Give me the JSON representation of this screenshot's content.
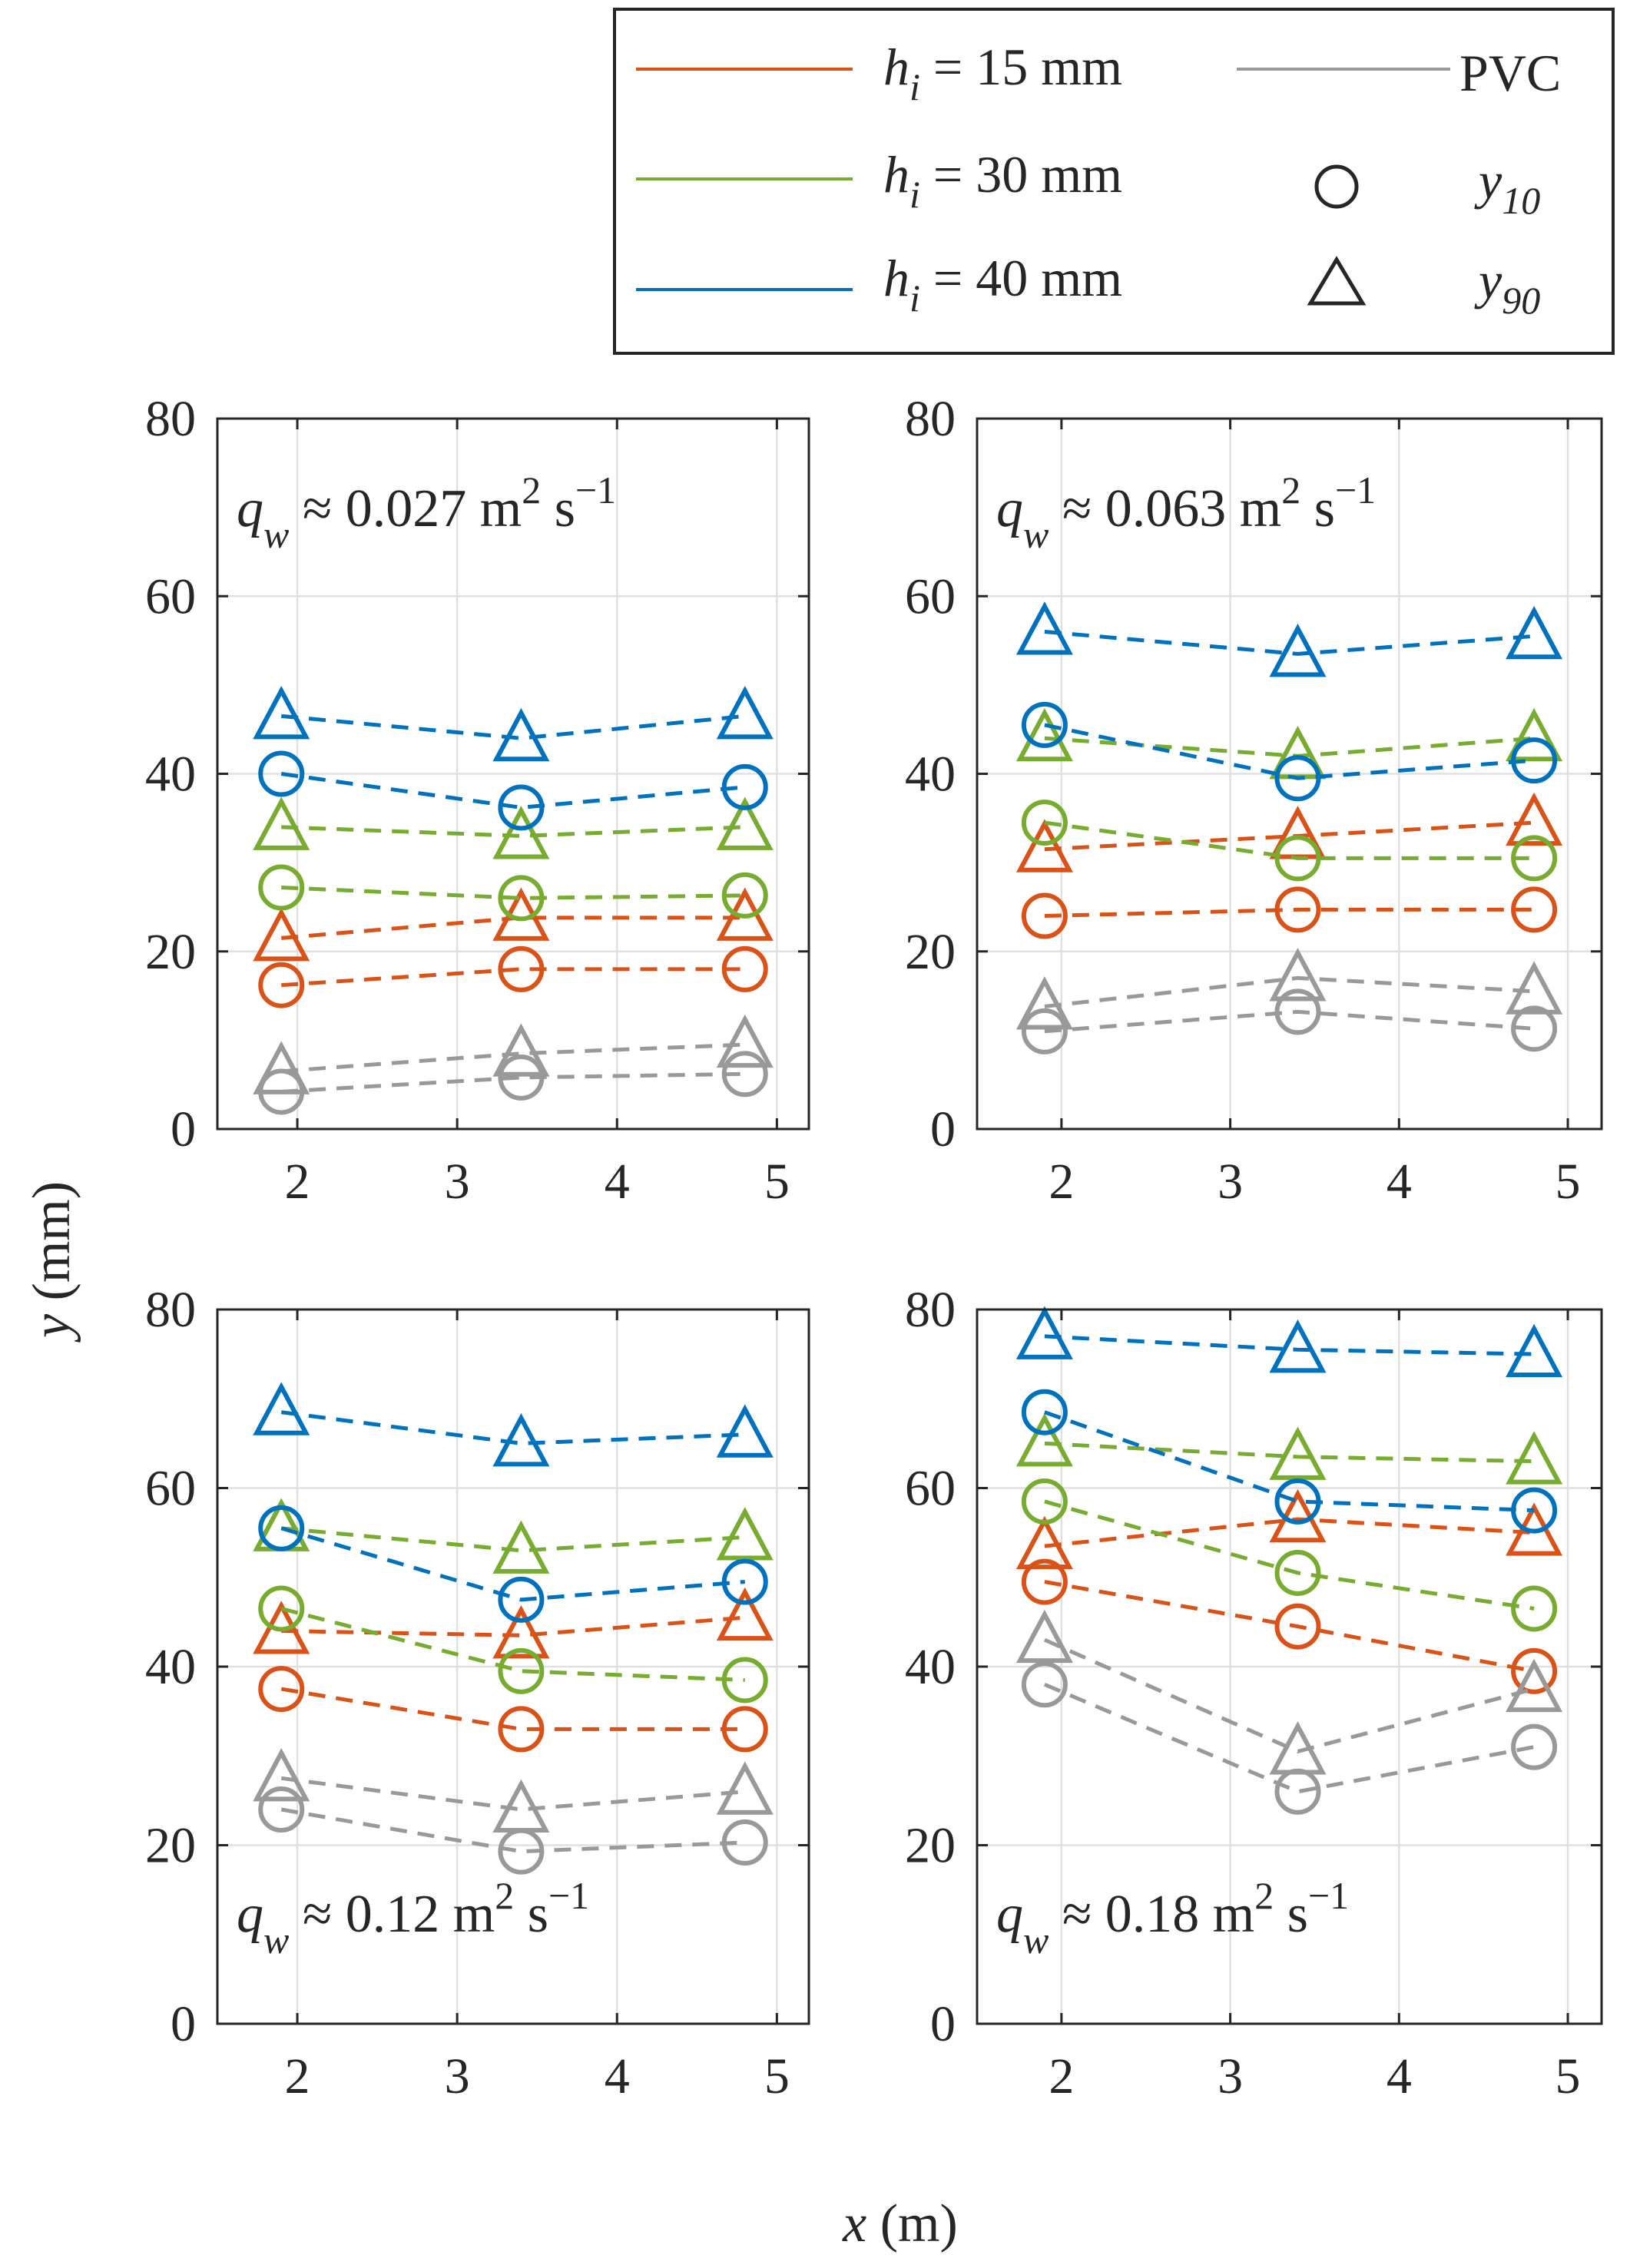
{
  "legend": {
    "items": [
      {
        "label": "h",
        "sub": "i",
        "suffix": " = 15 mm",
        "color": "#d95319",
        "kind": "line"
      },
      {
        "label": "h",
        "sub": "i",
        "suffix": " = 30 mm",
        "color": "#77ac30",
        "kind": "line"
      },
      {
        "label": "h",
        "sub": "i",
        "suffix": " = 40 mm",
        "color": "#0072bd",
        "kind": "line"
      },
      {
        "label": "PVC",
        "sub": "",
        "suffix": "",
        "color": "#999999",
        "kind": "line"
      },
      {
        "label": "y",
        "sub": "10",
        "suffix": "",
        "color": "#262626",
        "kind": "circle"
      },
      {
        "label": "y",
        "sub": "90",
        "suffix": "",
        "color": "#262626",
        "kind": "triangle"
      }
    ]
  },
  "axes": {
    "xlabel": "x",
    "xlabel_unit": " (m)",
    "ylabel": "y",
    "ylabel_unit": " (mm)"
  },
  "chart_data": [
    {
      "type": "line",
      "title": "q_w ≈ 0.027 m² s⁻¹",
      "annotation": {
        "q": "q",
        "sub": "w",
        "mid": " ≈ 0.027 m",
        "sup1": "2",
        "s": " s",
        "sup2": "−1"
      },
      "annotation_pos": "top-left",
      "xlim": [
        1.5,
        5.2
      ],
      "ylim": [
        0,
        80
      ],
      "xticks": [
        2,
        3,
        4,
        5
      ],
      "yticks": [
        0,
        20,
        40,
        60,
        80
      ],
      "x": [
        1.9,
        3.4,
        4.8
      ],
      "series": [
        {
          "name": "h_i = 15 mm y10",
          "color": "#d95319",
          "marker": "circle",
          "values": [
            16.2,
            18.0,
            18.0
          ]
        },
        {
          "name": "h_i = 15 mm y90",
          "color": "#d95319",
          "marker": "triangle",
          "values": [
            21.5,
            23.8,
            23.8
          ]
        },
        {
          "name": "h_i = 30 mm y10",
          "color": "#77ac30",
          "marker": "circle",
          "values": [
            27.2,
            26.0,
            26.3
          ]
        },
        {
          "name": "h_i = 30 mm y90",
          "color": "#77ac30",
          "marker": "triangle",
          "values": [
            34.0,
            33.0,
            34.0
          ]
        },
        {
          "name": "h_i = 40 mm y10",
          "color": "#0072bd",
          "marker": "circle",
          "values": [
            40.0,
            36.2,
            38.5
          ]
        },
        {
          "name": "h_i = 40 mm y90",
          "color": "#0072bd",
          "marker": "triangle",
          "values": [
            46.5,
            44.0,
            46.5
          ]
        },
        {
          "name": "PVC y10",
          "color": "#999999",
          "marker": "circle",
          "values": [
            4.2,
            5.8,
            6.2
          ]
        },
        {
          "name": "PVC y90",
          "color": "#999999",
          "marker": "triangle",
          "values": [
            6.5,
            8.5,
            9.5
          ]
        }
      ]
    },
    {
      "type": "line",
      "title": "q_w ≈ 0.063 m² s⁻¹",
      "annotation": {
        "q": "q",
        "sub": "w",
        "mid": " ≈ 0.063 m",
        "sup1": "2",
        "s": " s",
        "sup2": "−1"
      },
      "annotation_pos": "top-left",
      "xlim": [
        1.5,
        5.2
      ],
      "ylim": [
        0,
        80
      ],
      "xticks": [
        2,
        3,
        4,
        5
      ],
      "yticks": [
        0,
        20,
        40,
        60,
        80
      ],
      "x": [
        1.9,
        3.4,
        4.8
      ],
      "series": [
        {
          "name": "h_i = 15 mm y10",
          "color": "#d95319",
          "marker": "circle",
          "values": [
            24.0,
            24.7,
            24.7
          ]
        },
        {
          "name": "h_i = 15 mm y90",
          "color": "#d95319",
          "marker": "triangle",
          "values": [
            31.5,
            33.0,
            34.5
          ]
        },
        {
          "name": "h_i = 30 mm y10",
          "color": "#77ac30",
          "marker": "circle",
          "values": [
            34.5,
            30.5,
            30.5
          ]
        },
        {
          "name": "h_i = 30 mm y90",
          "color": "#77ac30",
          "marker": "triangle",
          "values": [
            44.0,
            42.0,
            44.0
          ]
        },
        {
          "name": "h_i = 40 mm y10",
          "color": "#0072bd",
          "marker": "circle",
          "values": [
            45.5,
            39.5,
            41.5
          ]
        },
        {
          "name": "h_i = 40 mm y90",
          "color": "#0072bd",
          "marker": "triangle",
          "values": [
            56.0,
            53.5,
            55.5
          ]
        },
        {
          "name": "PVC y10",
          "color": "#999999",
          "marker": "circle",
          "values": [
            11.0,
            13.2,
            11.3
          ]
        },
        {
          "name": "PVC y90",
          "color": "#999999",
          "marker": "triangle",
          "values": [
            13.8,
            17.0,
            15.5
          ]
        }
      ]
    },
    {
      "type": "line",
      "title": "q_w ≈ 0.12 m² s⁻¹",
      "annotation": {
        "q": "q",
        "sub": "w",
        "mid": " ≈ 0.12 m",
        "sup1": "2",
        "s": " s",
        "sup2": "−1"
      },
      "annotation_pos": "bottom-left",
      "xlim": [
        1.5,
        5.2
      ],
      "ylim": [
        0,
        80
      ],
      "xticks": [
        2,
        3,
        4,
        5
      ],
      "yticks": [
        0,
        20,
        40,
        60,
        80
      ],
      "x": [
        1.9,
        3.4,
        4.8
      ],
      "series": [
        {
          "name": "h_i = 15 mm y10",
          "color": "#d95319",
          "marker": "circle",
          "values": [
            37.5,
            33.0,
            33.0
          ]
        },
        {
          "name": "h_i = 15 mm y90",
          "color": "#d95319",
          "marker": "triangle",
          "values": [
            44.0,
            43.5,
            45.5
          ]
        },
        {
          "name": "h_i = 30 mm y10",
          "color": "#77ac30",
          "marker": "circle",
          "values": [
            46.5,
            39.5,
            38.5
          ]
        },
        {
          "name": "h_i = 30 mm y90",
          "color": "#77ac30",
          "marker": "triangle",
          "values": [
            55.5,
            53.0,
            54.5
          ]
        },
        {
          "name": "h_i = 40 mm y10",
          "color": "#0072bd",
          "marker": "circle",
          "values": [
            55.5,
            47.5,
            49.5
          ]
        },
        {
          "name": "h_i = 40 mm y90",
          "color": "#0072bd",
          "marker": "triangle",
          "values": [
            68.5,
            65.0,
            66.0
          ]
        },
        {
          "name": "PVC y10",
          "color": "#999999",
          "marker": "circle",
          "values": [
            24.0,
            19.3,
            20.3
          ]
        },
        {
          "name": "PVC y90",
          "color": "#999999",
          "marker": "triangle",
          "values": [
            27.5,
            24.0,
            26.0
          ]
        }
      ]
    },
    {
      "type": "line",
      "title": "q_w ≈ 0.18 m² s⁻¹",
      "annotation": {
        "q": "q",
        "sub": "w",
        "mid": " ≈ 0.18 m",
        "sup1": "2",
        "s": " s",
        "sup2": "−1"
      },
      "annotation_pos": "bottom-left",
      "xlim": [
        1.5,
        5.2
      ],
      "ylim": [
        0,
        80
      ],
      "xticks": [
        2,
        3,
        4,
        5
      ],
      "yticks": [
        0,
        20,
        40,
        60,
        80
      ],
      "x": [
        1.9,
        3.4,
        4.8
      ],
      "series": [
        {
          "name": "h_i = 15 mm y10",
          "color": "#d95319",
          "marker": "circle",
          "values": [
            49.5,
            44.5,
            39.5
          ]
        },
        {
          "name": "h_i = 15 mm y90",
          "color": "#d95319",
          "marker": "triangle",
          "values": [
            53.5,
            56.5,
            55.0
          ]
        },
        {
          "name": "h_i = 30 mm y10",
          "color": "#77ac30",
          "marker": "circle",
          "values": [
            58.5,
            50.5,
            46.5
          ]
        },
        {
          "name": "h_i = 30 mm y90",
          "color": "#77ac30",
          "marker": "triangle",
          "values": [
            65.0,
            63.5,
            63.0
          ]
        },
        {
          "name": "h_i = 40 mm y10",
          "color": "#0072bd",
          "marker": "circle",
          "values": [
            68.5,
            58.5,
            57.5
          ]
        },
        {
          "name": "h_i = 40 mm y90",
          "color": "#0072bd",
          "marker": "triangle",
          "values": [
            77.0,
            75.5,
            75.0
          ]
        },
        {
          "name": "PVC y10",
          "color": "#999999",
          "marker": "circle",
          "values": [
            38.0,
            26.0,
            31.0
          ]
        },
        {
          "name": "PVC y90",
          "color": "#999999",
          "marker": "triangle",
          "values": [
            43.0,
            30.5,
            37.5
          ]
        }
      ]
    }
  ]
}
